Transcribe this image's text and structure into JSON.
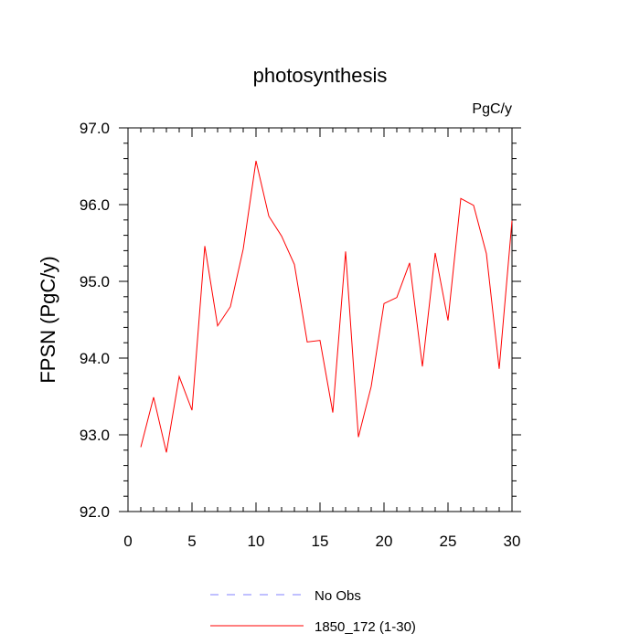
{
  "chart_data": {
    "type": "line",
    "title": "photosynthesis",
    "units_label": "PgC/y",
    "xlabel": "",
    "ylabel": "FPSN  (PgC/y)",
    "xlim": [
      0,
      30
    ],
    "ylim": [
      92.0,
      97.0
    ],
    "x_ticks": [
      0,
      5,
      10,
      15,
      20,
      25,
      30
    ],
    "x_tick_labels": [
      "0",
      "5",
      "10",
      "15",
      "20",
      "25",
      "30"
    ],
    "y_ticks": [
      92.0,
      93.0,
      94.0,
      95.0,
      96.0,
      97.0
    ],
    "y_tick_labels": [
      "92.0",
      "93.0",
      "94.0",
      "95.0",
      "96.0",
      "97.0"
    ],
    "grid": false,
    "legend_position": "bottom-center",
    "series": [
      {
        "name": "No Obs",
        "color": "#8080ff",
        "style": "dashed",
        "x": [],
        "y": []
      },
      {
        "name": "1850_172 (1-30)",
        "color": "#ff0000",
        "style": "solid",
        "x": [
          1,
          2,
          3,
          4,
          5,
          6,
          7,
          8,
          9,
          10,
          11,
          12,
          13,
          14,
          15,
          16,
          17,
          18,
          19,
          20,
          21,
          22,
          23,
          24,
          25,
          26,
          27,
          28,
          29,
          30
        ],
        "y": [
          92.84,
          93.49,
          92.77,
          93.76,
          93.32,
          95.46,
          94.42,
          94.67,
          95.42,
          96.57,
          95.85,
          95.59,
          95.22,
          94.21,
          94.23,
          93.29,
          95.39,
          92.97,
          93.63,
          94.71,
          94.79,
          95.24,
          93.89,
          95.37,
          94.49,
          96.08,
          95.99,
          95.36,
          93.86,
          95.79
        ]
      }
    ]
  }
}
